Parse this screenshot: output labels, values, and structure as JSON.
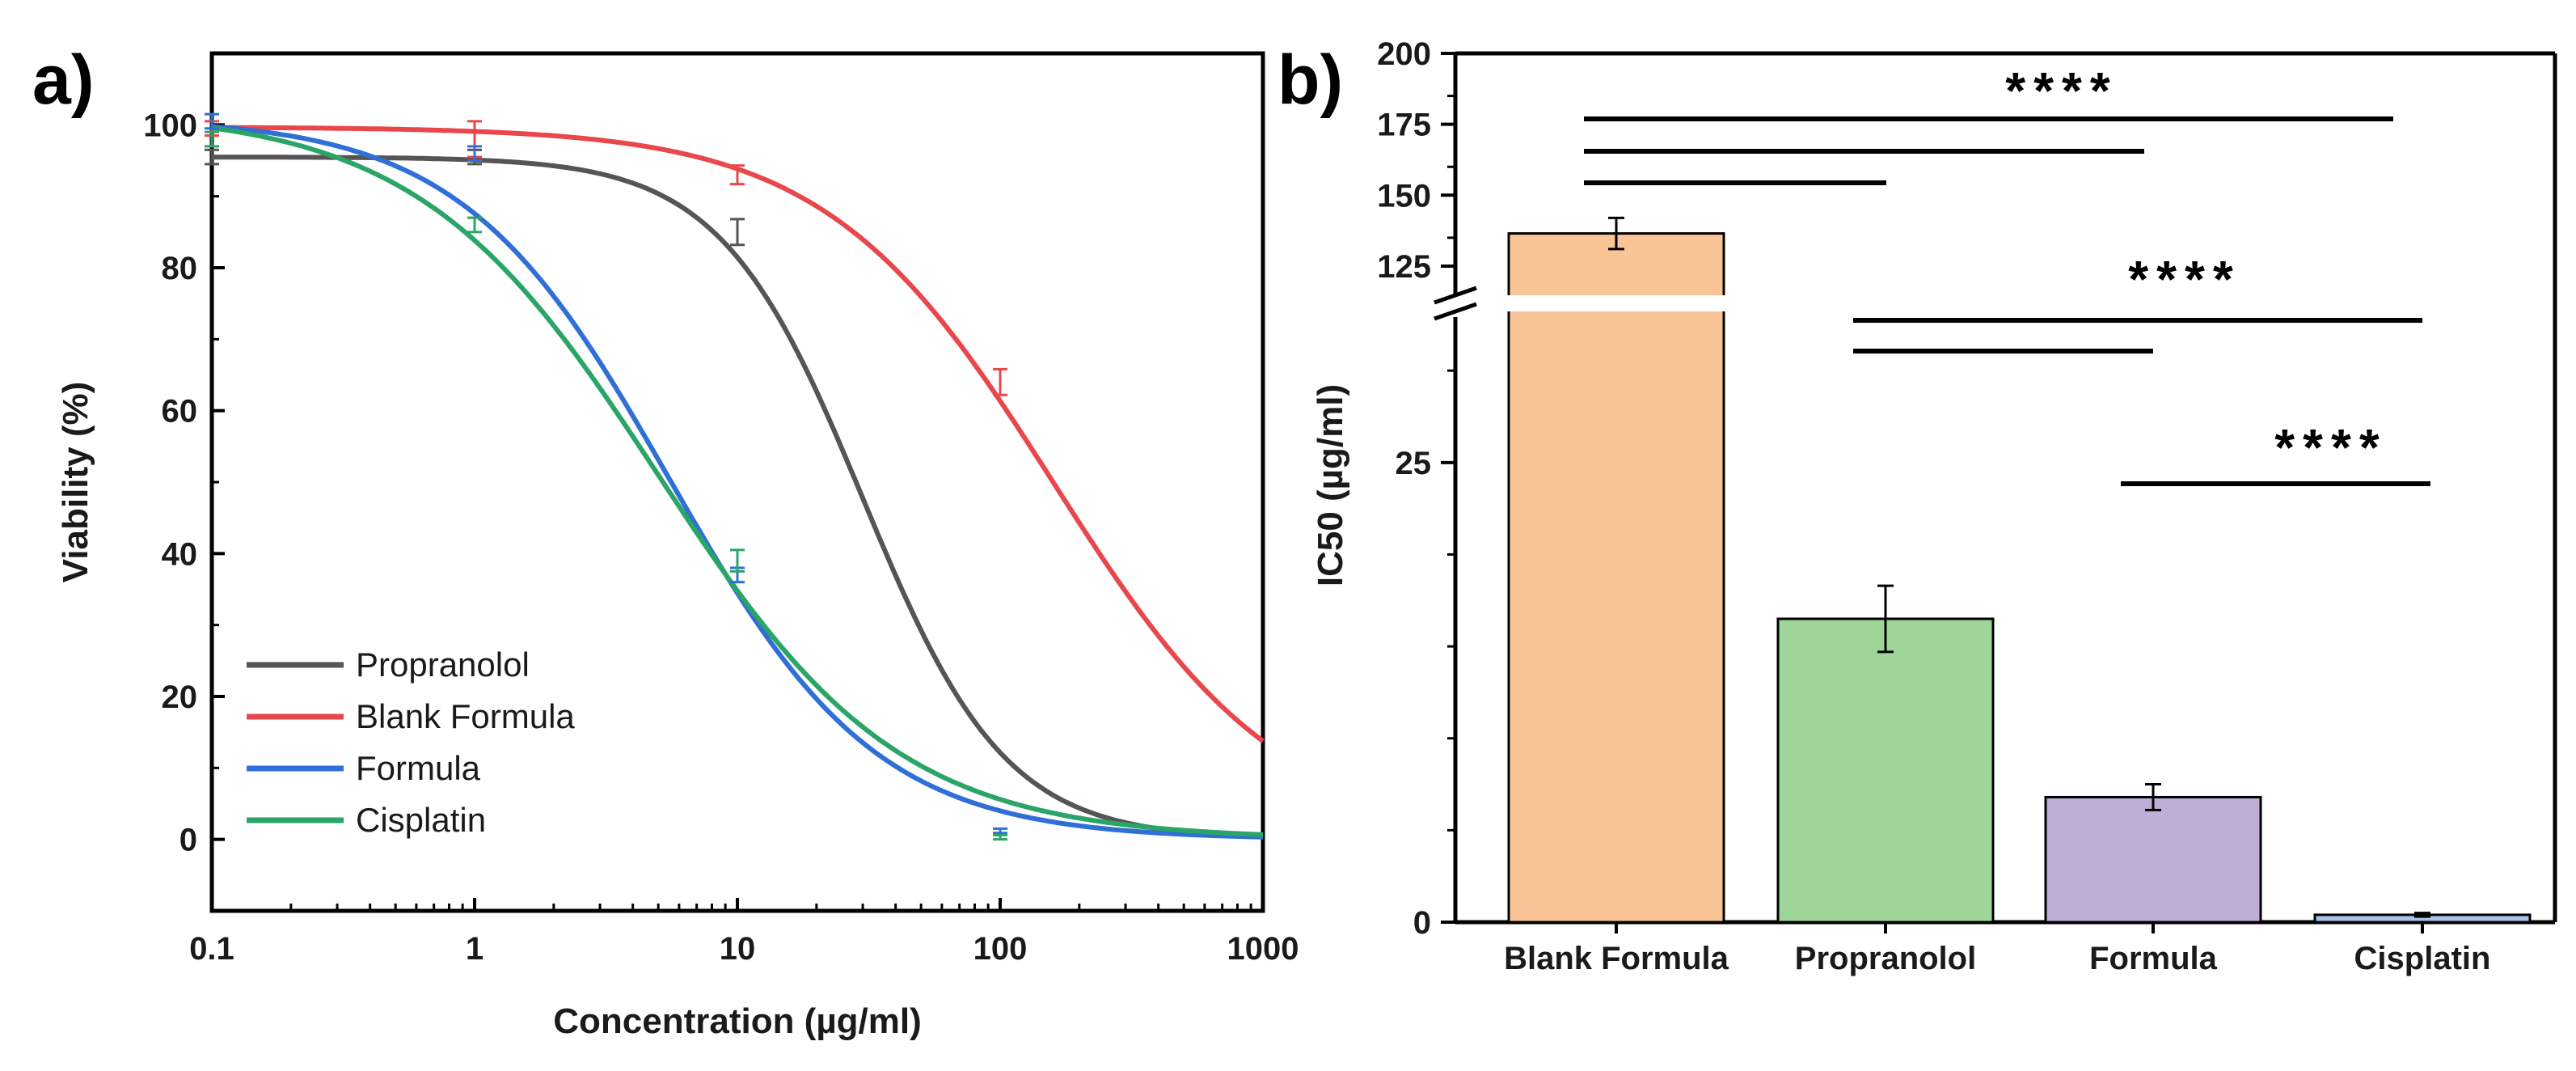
{
  "panel_a_label": "a)",
  "panel_b_label": "b)",
  "chart_data": [
    {
      "type": "line",
      "xlabel": "Concentration (µg/ml)",
      "ylabel": "Viability (%)",
      "xscale": "log",
      "xlim": [
        0.1,
        1000
      ],
      "ylim": [
        -10,
        110
      ],
      "x_ticks": [
        "0.1",
        "1",
        "10",
        "100",
        "1000"
      ],
      "y_ticks": [
        0,
        20,
        40,
        60,
        80,
        100
      ],
      "legend_position": "bottom-left",
      "series": [
        {
          "name": "Propranolol",
          "color": "#555555",
          "curve": {
            "top": 95.5,
            "bottom": 0,
            "ic50": 30,
            "hill": 1.6
          },
          "points": [
            {
              "x": 0.1,
              "y": 95.5,
              "err": 1.0
            },
            {
              "x": 1,
              "y": 95.5,
              "err": 1.0
            },
            {
              "x": 10,
              "y": 85,
              "err": 1.8
            }
          ]
        },
        {
          "name": "Blank Formula",
          "color": "#e8474c",
          "curve": {
            "top": 99.7,
            "bottom": 0,
            "ic50": 160,
            "hill": 1.0
          },
          "points": [
            {
              "x": 0.1,
              "y": 99.5,
              "err": 1.0
            },
            {
              "x": 1,
              "y": 98,
              "err": 2.5
            },
            {
              "x": 10,
              "y": 93,
              "err": 1.3
            },
            {
              "x": 100,
              "y": 64,
              "err": 1.8
            }
          ]
        },
        {
          "name": "Formula",
          "color": "#2f6fd6",
          "curve": {
            "top": 101,
            "bottom": 0,
            "ic50": 5.5,
            "hill": 1.1
          },
          "points": [
            {
              "x": 0.1,
              "y": 100.5,
              "err": 1.0
            },
            {
              "x": 1,
              "y": 96,
              "err": 1.0
            },
            {
              "x": 10,
              "y": 37,
              "err": 1.0
            },
            {
              "x": 100,
              "y": 1.2,
              "err": 0.3
            }
          ]
        },
        {
          "name": "Cisplatin",
          "color": "#2aa567",
          "curve": {
            "top": 102,
            "bottom": 0,
            "ic50": 5.0,
            "hill": 0.95
          },
          "points": [
            {
              "x": 0.1,
              "y": 98,
              "err": 1.0
            },
            {
              "x": 1,
              "y": 86,
              "err": 1.0
            },
            {
              "x": 10,
              "y": 39,
              "err": 1.5
            },
            {
              "x": 100,
              "y": 0.3,
              "err": 0.3
            }
          ]
        }
      ]
    },
    {
      "type": "bar",
      "ylabel": "IC50 (µg/ml)",
      "categories": [
        "Blank Formula",
        "Propranolol",
        "Formula",
        "Cisplatin"
      ],
      "values": [
        136.5,
        16.5,
        6.8,
        0.4
      ],
      "errors": [
        5.5,
        1.8,
        0.7,
        0.1
      ],
      "colors": [
        "#f9c597",
        "#9ed69a",
        "#bfafd6",
        "#a9c2e6"
      ],
      "axis_break": [
        33,
        115
      ],
      "y_ticks": [
        "0",
        "25",
        "125",
        "150",
        "175",
        "200"
      ],
      "significance": [
        {
          "label": "****",
          "pairs": [
            [
              0,
              1
            ],
            [
              0,
              2
            ],
            [
              0,
              3
            ]
          ]
        },
        {
          "label": "****",
          "pairs": [
            [
              1,
              2
            ],
            [
              1,
              3
            ]
          ]
        },
        {
          "label": "****",
          "pairs": [
            [
              2,
              3
            ]
          ]
        }
      ]
    }
  ]
}
